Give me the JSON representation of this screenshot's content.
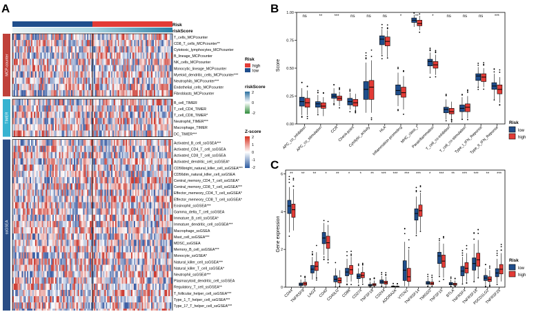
{
  "panels": {
    "a": "A",
    "b": "B",
    "c": "C"
  },
  "panel_a": {
    "annotation_labels": {
      "risk": "Risk",
      "risk_score": "riskScore"
    },
    "groups": [
      {
        "label": "MCP-counter",
        "color": "#c0413a"
      },
      {
        "label": "TIMER",
        "color": "#37b3d1"
      },
      {
        "label": "ssGSEA",
        "color": "#2a4d86"
      }
    ],
    "row_labels": [
      "T_cells_MCPcounter",
      "CD8_T_cells_MCPcounter**",
      "Cytotoxic_lymphocytes_MCPcounter",
      "B_lineage_MCPcounter",
      "NK_cells_MCPcounter",
      "Monocytic_lineage_MCPcounter",
      "Myeloid_dendritic_cells_MCPcounter***",
      "Neutrophils_MCPcounter***",
      "Endothelial_cells_MCPcounter",
      "Fibroblasts_MCPcounter",
      "B_cell_TIMER",
      "T_cell_CD4_TIMER",
      "T_cell_CD8_TIMER*",
      "Neutrophil_TIMER***",
      "Macrophage_TIMER",
      "DC_TIMER***",
      "Activated_B_cell_ssGSEA***",
      "Activated_CD4_T_cell_ssGSEA",
      "Activated_CD8_T_cell_ssGSEA",
      "Activated_dendritic_cell_ssGSEA*",
      "CD56bright_natural_killer_cell_ssGSEA***",
      "CD56dim_natural_killer_cell_ssGSEA",
      "Central_memory_CD4_T_cell_ssGSEA*",
      "Central_memory_CD8_T_cell_ssGSEA***",
      "Effector_memeory_CD4_T_cell_ssGSEA*",
      "Effector_memeory_CD8_T_cell_ssGSEA*",
      "Eosinophil_ssGSEA***",
      "Gamma_delta_T_cell_ssGSEA",
      "Immature_B_cell_ssGSEA*",
      "Immature_dendritic_cell_ssGSEA***",
      "Macrophage_ssGSEA",
      "Mast_cell_ssGSEA***",
      "MDSC_ssGSEA",
      "Memory_B_cell_ssGSEA***",
      "Monocyte_ssGSEA*",
      "Natural_killer_cell_ssGSEA***",
      "Natural_killer_T_cell_ssGSEA*",
      "Neutrophil_ssGSEA***",
      "Plasmacytoid_dendritic_cell_ssGSEA",
      "Regulatory_T_cell_ssGSEA**",
      "T_follicular_helper_cell_ssGSEA***",
      "Type_1_T_helper_cell_ssGSEA***",
      "Type_17_T_helper_cell_ssGSEA***",
      "Type_2_T_helper_cell_ssGSEA***"
    ],
    "legend_risk": {
      "title": "Risk",
      "items": [
        {
          "label": "high",
          "color": "#e23b36"
        },
        {
          "label": "low",
          "color": "#1f4e8c"
        }
      ]
    },
    "legend_riskscore": {
      "title": "riskScore",
      "ticks": [
        "2",
        "0",
        "-2"
      ]
    },
    "legend_zscore": {
      "title": "Z-score",
      "ticks": [
        "2",
        "1",
        "0",
        "-1",
        "-2"
      ]
    }
  },
  "chart_data": [
    {
      "type": "box",
      "panel": "B",
      "ylabel": "Score",
      "ylim": [
        0,
        1
      ],
      "yticks": [
        "0.00",
        "0.25",
        "0.50",
        "0.75",
        "1.00"
      ],
      "categories": [
        "APC_co_inhibition",
        "APC_co_stimulation",
        "CCR",
        "Check-point",
        "Cytolytic_activity",
        "HLA",
        "Inflammation-promoting",
        "MHC_class_I",
        "Parainflammation",
        "T_cell_co-inhibition",
        "T_cell_co-stimulation",
        "Type_I_IFN_Reponse",
        "Type_II_IFN_Reponse"
      ],
      "significance": [
        "ns",
        "**",
        "***",
        "ns",
        "ns",
        "ns",
        "*",
        "**",
        "*",
        "ns",
        "ns",
        "ns",
        "***"
      ],
      "legend": {
        "title": "Risk",
        "items": [
          {
            "label": "low",
            "color": "#1f4e8c"
          },
          {
            "label": "high",
            "color": "#e23b36"
          }
        ]
      },
      "series": [
        {
          "name": "low",
          "stats": [
            [
              0.08,
              0.16,
              0.2,
              0.24,
              0.32
            ],
            [
              0.09,
              0.15,
              0.18,
              0.2,
              0.26
            ],
            [
              0.19,
              0.23,
              0.25,
              0.27,
              0.32
            ],
            [
              0.13,
              0.17,
              0.2,
              0.23,
              0.28
            ],
            [
              0.1,
              0.22,
              0.31,
              0.38,
              0.55
            ],
            [
              0.62,
              0.71,
              0.76,
              0.79,
              0.85
            ],
            [
              0.16,
              0.26,
              0.3,
              0.35,
              0.46
            ],
            [
              0.87,
              0.91,
              0.93,
              0.95,
              0.98
            ],
            [
              0.45,
              0.52,
              0.56,
              0.58,
              0.64
            ],
            [
              0.04,
              0.1,
              0.13,
              0.15,
              0.22
            ],
            [
              0.05,
              0.11,
              0.14,
              0.17,
              0.24
            ],
            [
              0.33,
              0.39,
              0.43,
              0.45,
              0.51
            ],
            [
              0.22,
              0.31,
              0.34,
              0.37,
              0.45
            ]
          ]
        },
        {
          "name": "high",
          "stats": [
            [
              0.08,
              0.15,
              0.19,
              0.23,
              0.3
            ],
            [
              0.07,
              0.14,
              0.16,
              0.19,
              0.24
            ],
            [
              0.16,
              0.21,
              0.23,
              0.25,
              0.29
            ],
            [
              0.12,
              0.16,
              0.19,
              0.22,
              0.27
            ],
            [
              0.1,
              0.22,
              0.33,
              0.39,
              0.57
            ],
            [
              0.6,
              0.7,
              0.74,
              0.78,
              0.84
            ],
            [
              0.13,
              0.24,
              0.28,
              0.33,
              0.43
            ],
            [
              0.84,
              0.88,
              0.9,
              0.93,
              0.97
            ],
            [
              0.44,
              0.5,
              0.53,
              0.56,
              0.62
            ],
            [
              0.04,
              0.09,
              0.11,
              0.14,
              0.2
            ],
            [
              0.05,
              0.11,
              0.15,
              0.18,
              0.25
            ],
            [
              0.33,
              0.38,
              0.42,
              0.45,
              0.5
            ],
            [
              0.19,
              0.27,
              0.31,
              0.35,
              0.42
            ]
          ]
        }
      ]
    },
    {
      "type": "box",
      "panel": "C",
      "ylabel": "Gene expression",
      "ylim": [
        0,
        6.2
      ],
      "yticks": [
        "0",
        "2",
        "4",
        "6"
      ],
      "categories": [
        "CD44",
        "TNFRSF9",
        "LAG3",
        "CD40",
        "CD40LG",
        "CD86",
        "CD274",
        "TNFSF18",
        "CD244",
        "ADORA2A",
        "VTCN1",
        "TNFRSF14",
        "TMIGD2",
        "TNFSF15",
        "BTLA",
        "TNFRSF4",
        "TNFRSF18",
        "PDCD1LG2",
        "TNFRSF25"
      ],
      "significance": [
        "**",
        "**",
        "**",
        "*",
        "**",
        "*",
        "*",
        "**",
        "***",
        "***",
        "***",
        "***",
        "*",
        "***",
        "**",
        "***",
        "***",
        "**",
        "***"
      ],
      "legend": {
        "title": "Risk",
        "items": [
          {
            "label": "low",
            "color": "#1f4e8c"
          },
          {
            "label": "high",
            "color": "#e23b36"
          }
        ]
      },
      "series": [
        {
          "name": "low",
          "stats": [
            [
              2.9,
              3.9,
              4.3,
              4.6,
              5.3
            ],
            [
              0.02,
              0.08,
              0.15,
              0.22,
              0.4
            ],
            [
              0.4,
              0.75,
              0.95,
              1.15,
              1.6
            ],
            [
              1.7,
              2.3,
              2.6,
              2.9,
              3.4
            ],
            [
              0.05,
              0.28,
              0.42,
              0.6,
              1.0
            ],
            [
              0.25,
              0.6,
              0.8,
              1.0,
              1.5
            ],
            [
              0.2,
              0.45,
              0.58,
              0.7,
              1.0
            ],
            [
              0.02,
              0.06,
              0.1,
              0.15,
              0.3
            ],
            [
              0.05,
              0.2,
              0.28,
              0.38,
              0.6
            ],
            [
              0.0,
              0.02,
              0.04,
              0.06,
              0.12
            ],
            [
              0.05,
              0.35,
              0.9,
              1.4,
              2.4
            ],
            [
              2.8,
              3.55,
              3.9,
              4.15,
              4.8
            ],
            [
              0.05,
              0.15,
              0.22,
              0.3,
              0.5
            ],
            [
              0.6,
              1.25,
              1.65,
              1.85,
              2.4
            ],
            [
              0.05,
              0.12,
              0.18,
              0.25,
              0.4
            ],
            [
              0.2,
              0.6,
              0.85,
              1.1,
              1.6
            ],
            [
              0.3,
              0.9,
              1.25,
              1.55,
              2.3
            ],
            [
              0.1,
              0.35,
              0.48,
              0.62,
              1.0
            ],
            [
              0.2,
              0.55,
              0.75,
              0.98,
              1.5
            ]
          ]
        },
        {
          "name": "high",
          "stats": [
            [
              3.0,
              3.7,
              4.1,
              4.4,
              5.2
            ],
            [
              0.02,
              0.1,
              0.18,
              0.26,
              0.45
            ],
            [
              0.5,
              0.88,
              1.1,
              1.35,
              1.85
            ],
            [
              1.5,
              2.05,
              2.35,
              2.7,
              3.3
            ],
            [
              0.05,
              0.22,
              0.35,
              0.5,
              0.9
            ],
            [
              0.3,
              0.68,
              0.92,
              1.15,
              1.6
            ],
            [
              0.22,
              0.5,
              0.62,
              0.78,
              1.1
            ],
            [
              0.02,
              0.08,
              0.13,
              0.19,
              0.35
            ],
            [
              0.05,
              0.16,
              0.24,
              0.32,
              0.55
            ],
            [
              0.0,
              0.02,
              0.03,
              0.05,
              0.1
            ],
            [
              0.05,
              0.3,
              0.55,
              1.0,
              2.0
            ],
            [
              3.0,
              3.75,
              4.05,
              4.35,
              5.0
            ],
            [
              0.05,
              0.13,
              0.2,
              0.27,
              0.45
            ],
            [
              0.5,
              1.05,
              1.38,
              1.7,
              2.3
            ],
            [
              0.05,
              0.1,
              0.15,
              0.21,
              0.35
            ],
            [
              0.3,
              0.75,
              1.0,
              1.3,
              1.8
            ],
            [
              0.5,
              1.1,
              1.45,
              1.8,
              2.5
            ],
            [
              0.1,
              0.3,
              0.42,
              0.55,
              0.9
            ],
            [
              0.3,
              0.7,
              0.95,
              1.2,
              1.8
            ]
          ]
        }
      ]
    }
  ]
}
